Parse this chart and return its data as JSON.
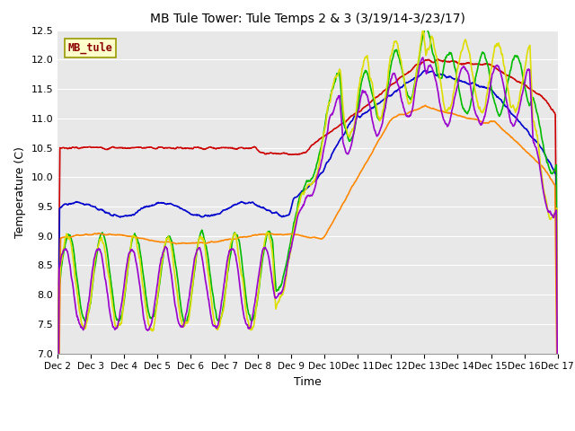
{
  "title": "MB Tule Tower: Tule Temps 2 & 3 (3/19/14-3/23/17)",
  "xlabel": "Time",
  "ylabel": "Temperature (C)",
  "ylim": [
    7.0,
    12.5
  ],
  "plot_background": "#e8e8e8",
  "grid_color": "white",
  "annotation_text": "MB_tule",
  "annotation_color": "#8b0000",
  "annotation_bg": "#ffffcc",
  "annotation_edge": "#999900",
  "xtick_labels": [
    "Dec 2",
    "Dec 3",
    "Dec 4",
    "Dec 5",
    "Dec 6",
    "Dec 7",
    "Dec 8",
    "Dec 9",
    "Dec 10",
    "Dec 11",
    "Dec 12",
    "Dec 13",
    "Dec 14",
    "Dec 15",
    "Dec 16",
    "Dec 17"
  ],
  "ytick_labels": [
    "7.0",
    "7.5",
    "8.0",
    "8.5",
    "9.0",
    "9.5",
    "10.0",
    "10.5",
    "11.0",
    "11.5",
    "12.0",
    "12.5"
  ],
  "series": {
    "Tul2_Ts-8": {
      "color": "#cc0000",
      "lw": 1.2
    },
    "Tul2_Ts0": {
      "color": "#0000cc",
      "lw": 1.2
    },
    "Tul2_Tw+10": {
      "color": "#00bb00",
      "lw": 1.2
    },
    "Tul3_Ts-8": {
      "color": "#ff8800",
      "lw": 1.2
    },
    "Tul3_Ts0": {
      "color": "#dddd00",
      "lw": 1.2
    },
    "Tul3_Tw+10": {
      "color": "#9900cc",
      "lw": 1.2
    }
  },
  "legend_colors": {
    "Tul2_Ts-8": "#cc0000",
    "Tul2_Ts0": "#0000cc",
    "Tul2_Tw+10": "#00bb00",
    "Tul3_Ts-8": "#ff8800",
    "Tul3_Ts0": "#dddd00",
    "Tul3_Tw+10": "#9900cc"
  }
}
